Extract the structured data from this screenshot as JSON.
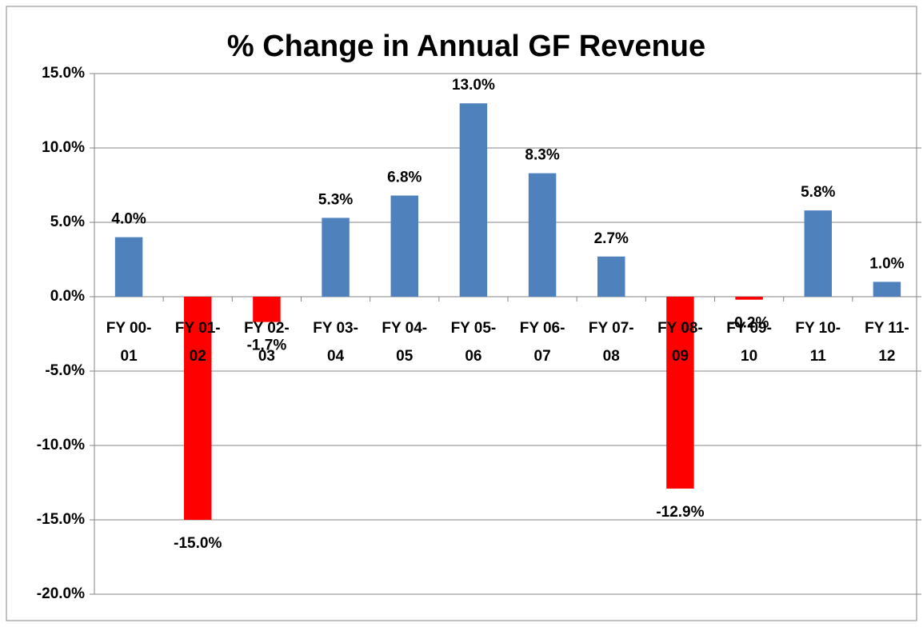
{
  "chart_data": {
    "type": "bar",
    "title": "% Change in Annual GF Revenue",
    "categories": [
      "FY 00-01",
      "FY 01-02",
      "FY 02-03",
      "FY 03-04",
      "FY 04-05",
      "FY 05-06",
      "FY 06-07",
      "FY 07-08",
      "FY 08-09",
      "FY 09-10",
      "FY 10-11",
      "FY 11-12"
    ],
    "values": [
      4.0,
      -15.0,
      -1.7,
      5.3,
      6.8,
      13.0,
      8.3,
      2.7,
      -12.9,
      -0.2,
      5.8,
      1.0
    ],
    "value_labels": [
      "4.0%",
      "-15.0%",
      "-1.7%",
      "5.3%",
      "6.8%",
      "13.0%",
      "8.3%",
      "2.7%",
      "-12.9%",
      "-0.2%",
      "5.8%",
      "1.0%"
    ],
    "colors": [
      "#4f81bd",
      "#ff0000",
      "#ff0000",
      "#4f81bd",
      "#4f81bd",
      "#4f81bd",
      "#4f81bd",
      "#4f81bd",
      "#ff0000",
      "#ff0000",
      "#4f81bd",
      "#4f81bd"
    ],
    "ylim": [
      -20,
      15
    ],
    "yticks": [
      {
        "value": -20,
        "label": "-20.0%"
      },
      {
        "value": -15,
        "label": "-15.0%"
      },
      {
        "value": -10,
        "label": "-10.0%"
      },
      {
        "value": -5,
        "label": "-5.0%"
      },
      {
        "value": 0,
        "label": "0.0%"
      },
      {
        "value": 5,
        "label": "5.0%"
      },
      {
        "value": 10,
        "label": "10.0%"
      },
      {
        "value": 15,
        "label": "15.0%"
      }
    ],
    "grid": true
  }
}
